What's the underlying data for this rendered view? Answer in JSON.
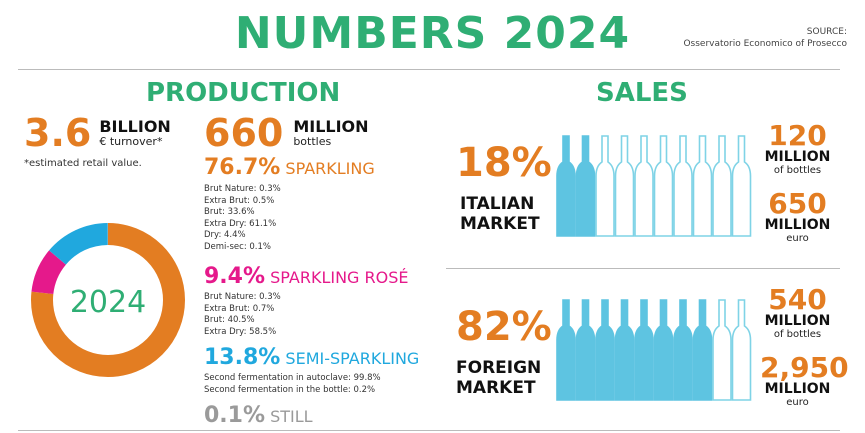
{
  "header": {
    "title": "NUMBERS 2024",
    "source_label": "SOURCE:",
    "source_text": "Osservatorio Economico of Prosecco"
  },
  "production": {
    "heading": "PRODUCTION",
    "turnover": {
      "value": "3.6",
      "unit": "BILLION",
      "sub": "€ turnover*",
      "note": "*estimated retail value."
    },
    "bottles": {
      "value": "660",
      "unit": "MILLION",
      "sub": "bottles"
    },
    "donut": {
      "label": "2024",
      "segments": [
        {
          "name": "sparkling",
          "pct": 76.7,
          "color": "#e37d22"
        },
        {
          "name": "rose",
          "pct": 9.4,
          "color": "#e5198b"
        },
        {
          "name": "semi",
          "pct": 13.8,
          "color": "#20a8de"
        },
        {
          "name": "still",
          "pct": 0.1,
          "color": "#aaaaaa"
        }
      ]
    },
    "categories": [
      {
        "pct": "76.7%",
        "name": "SPARKLING",
        "color": "#e37d22",
        "details": [
          "Brut Nature: 0.3%",
          "Extra Brut: 0.5%",
          "Brut: 33.6%",
          "Extra Dry: 61.1%",
          "Dry: 4.4%",
          "Demi-sec: 0.1%"
        ]
      },
      {
        "pct": "9.4%",
        "name": "SPARKLING ROSÉ",
        "color": "#e5198b",
        "details": [
          "Brut Nature: 0.3%",
          "Extra Brut: 0.7%",
          "Brut: 40.5%",
          "Extra Dry: 58.5%"
        ]
      },
      {
        "pct": "13.8%",
        "name": "SEMI-SPARKLING",
        "color": "#20a8de",
        "details": [
          "Second fermentation in autoclave: 99.8%",
          "Second fermentation in the bottle: 0.2%"
        ]
      },
      {
        "pct": "0.1%",
        "name": "STILL",
        "color": "#9a9a9a",
        "details": []
      }
    ]
  },
  "sales": {
    "heading": "SALES",
    "markets": [
      {
        "pct": "18%",
        "name_line1": "ITALIAN",
        "name_line2": "MARKET",
        "filled_bottles": 2,
        "total_bottles": 10,
        "vol_value": "120",
        "vol_unit": "MILLION",
        "vol_sub": "of bottles",
        "eur_value": "650",
        "eur_unit": "MILLION",
        "eur_sub": "euro"
      },
      {
        "pct": "82%",
        "name_line1": "FOREIGN",
        "name_line2": "MARKET",
        "filled_bottles": 8,
        "total_bottles": 10,
        "vol_value": "540",
        "vol_unit": "MILLION",
        "vol_sub": "of bottles",
        "eur_value": "2,950",
        "eur_unit": "MILLION",
        "eur_sub": "euro"
      }
    ]
  }
}
